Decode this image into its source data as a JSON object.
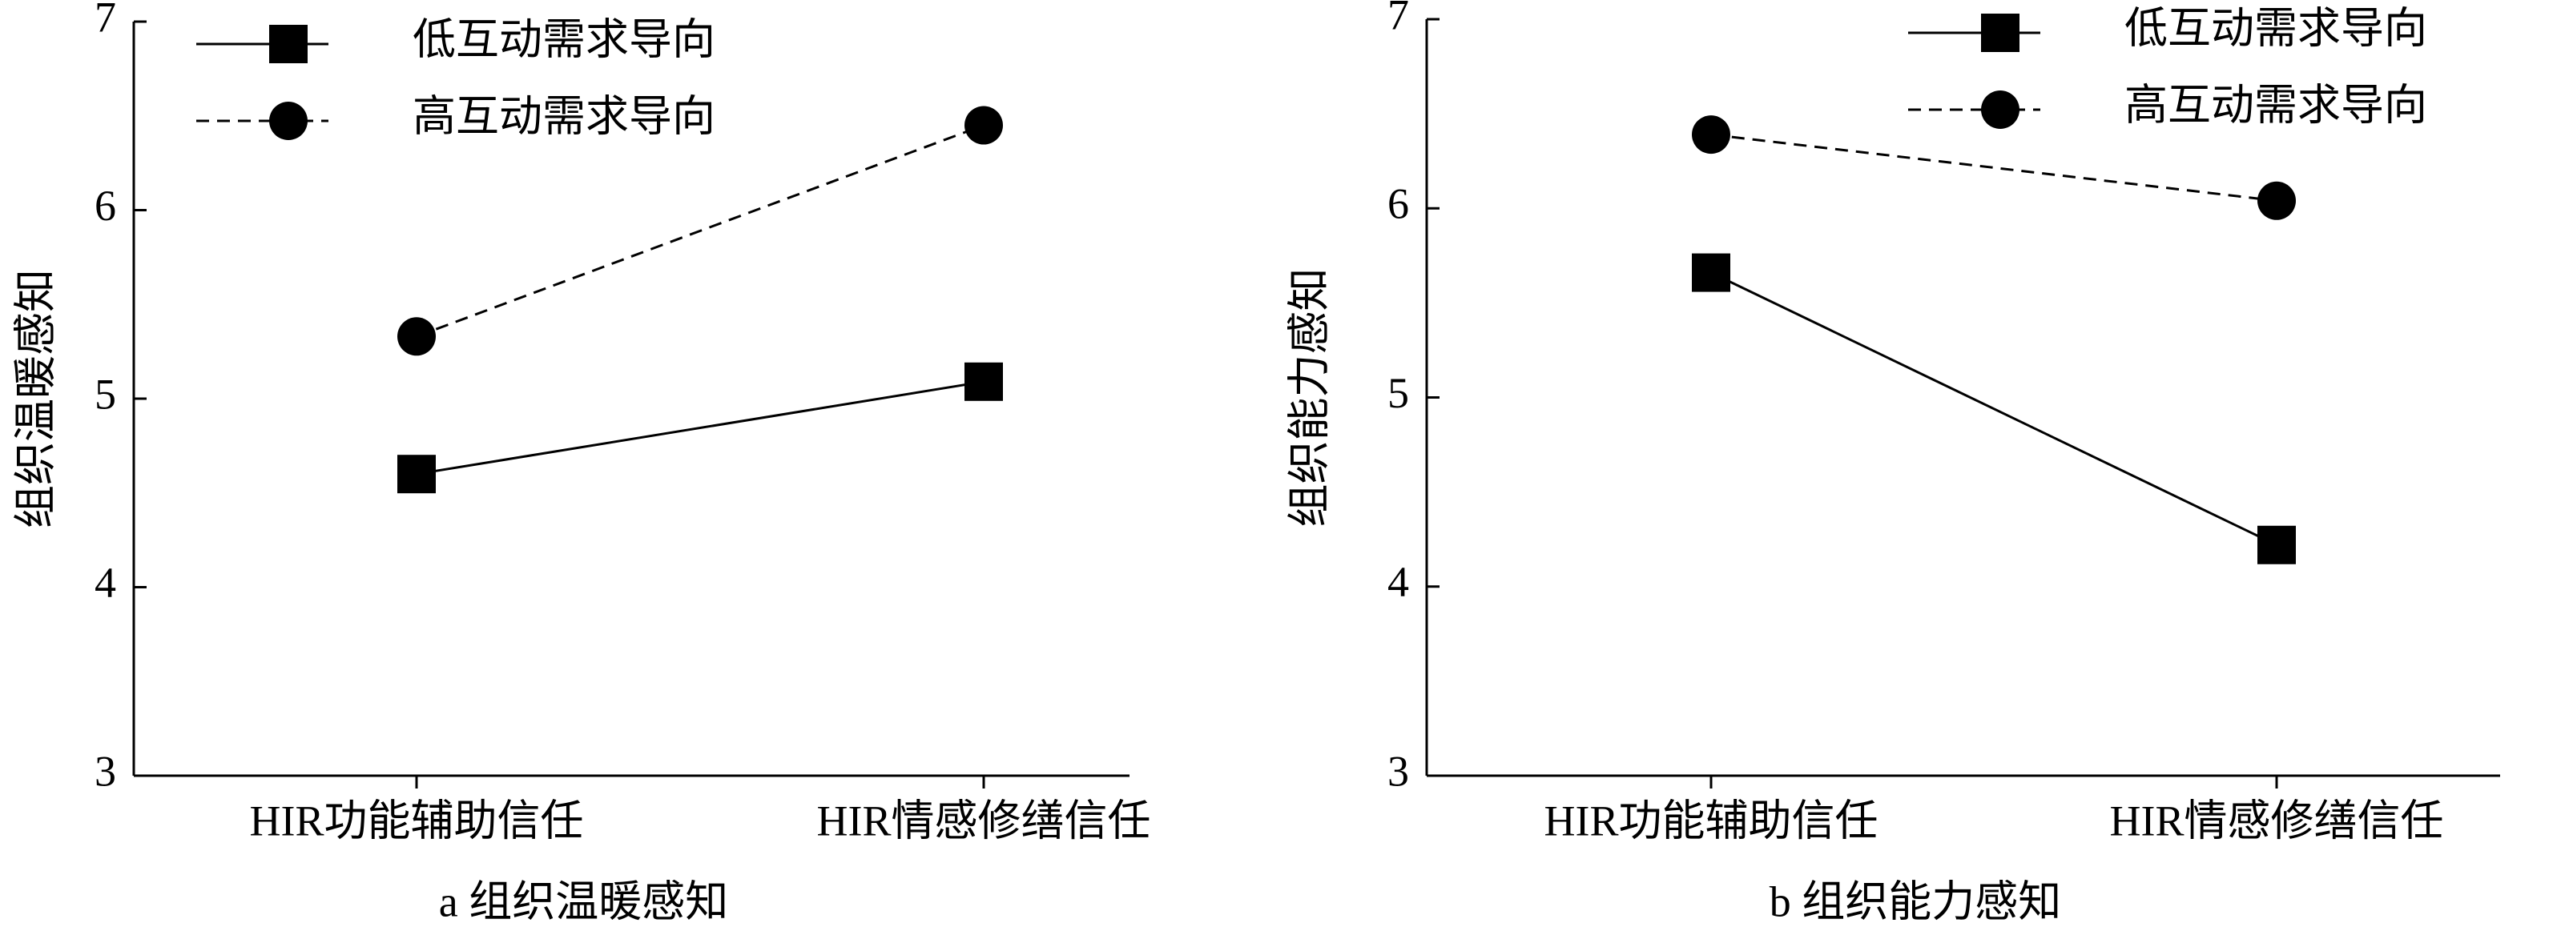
{
  "chart_data": [
    {
      "type": "line",
      "title": "a  组织温暖感知",
      "ylabel": "组织温暖感知",
      "categories": [
        "HIR功能辅助信任",
        "HIR情感修缮信任"
      ],
      "series": [
        {
          "name": "低互动需求导向",
          "color": "#000000",
          "line_style": "solid",
          "marker": "square",
          "values": [
            4.6,
            5.09
          ]
        },
        {
          "name": "高互动需求导向",
          "color": "#000000",
          "line_style": "dashed",
          "marker": "circle",
          "values": [
            5.33,
            6.45
          ]
        }
      ],
      "ylim": [
        3,
        7
      ],
      "yticks": [
        3,
        4,
        5,
        6,
        7
      ],
      "legend": "upper left"
    },
    {
      "type": "line",
      "title": "b  组织能力感知",
      "ylabel": "组织能力感知",
      "categories": [
        "HIR功能辅助信任",
        "HIR情感修缮信任"
      ],
      "series": [
        {
          "name": "低互动需求导向",
          "color": "#000000",
          "line_style": "solid",
          "marker": "square",
          "values": [
            5.66,
            4.22
          ]
        },
        {
          "name": "高互动需求导向",
          "color": "#000000",
          "line_style": "dashed",
          "marker": "circle",
          "values": [
            6.39,
            6.04
          ]
        }
      ],
      "ylim": [
        3,
        7
      ],
      "yticks": [
        3,
        4,
        5,
        6,
        7
      ],
      "legend": "upper right"
    }
  ]
}
